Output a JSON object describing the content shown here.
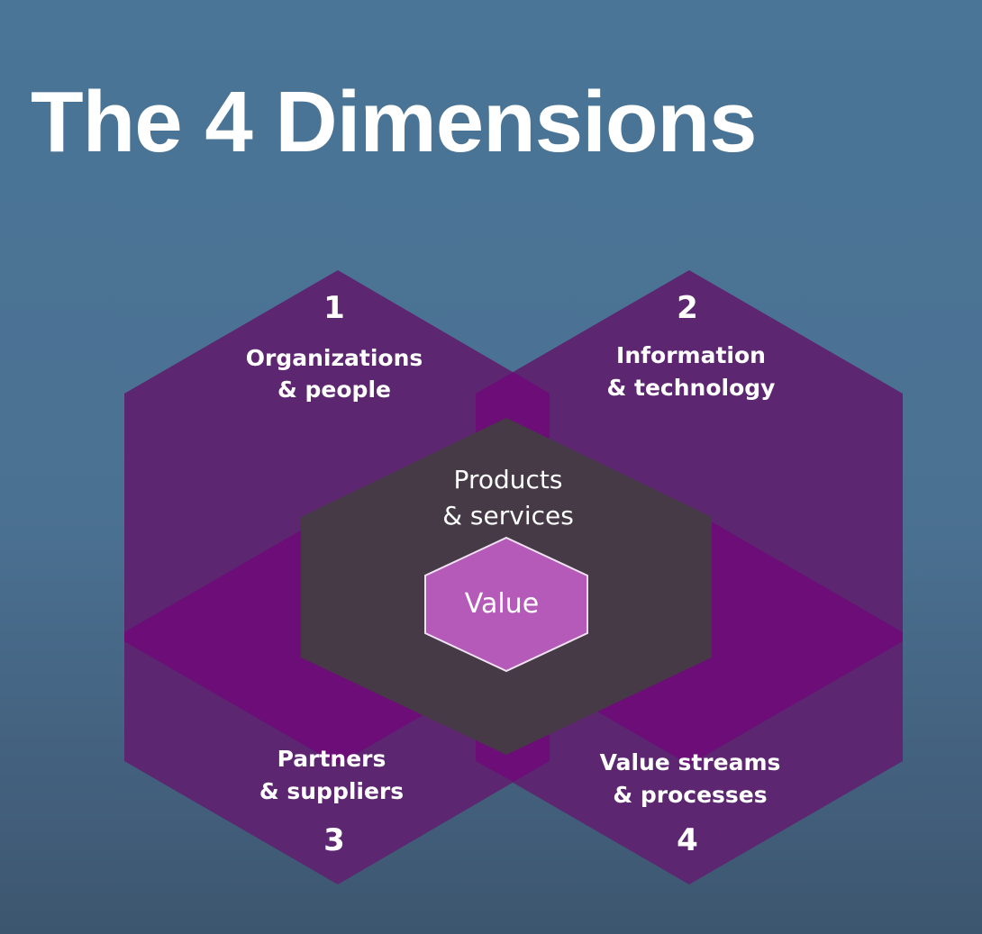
{
  "slide": {
    "title": "The 4 Dimensions"
  },
  "diagram": {
    "dimensions": [
      {
        "number": "1",
        "line1": "Organizations",
        "line2": "& people"
      },
      {
        "number": "2",
        "line1": "Information",
        "line2": "& technology"
      },
      {
        "number": "3",
        "line1": "Partners",
        "line2": "& suppliers"
      },
      {
        "number": "4",
        "line1": "Value streams",
        "line2": "& processes"
      }
    ],
    "core": {
      "line1": "Products",
      "line2": "& services"
    },
    "center": {
      "label": "Value"
    }
  },
  "colors": {
    "background": "#4a7597",
    "dimension_hex": "#5c2670",
    "overlap": "#6c0d78",
    "core_hex": "#463a46",
    "value_hex": "#b55ab8",
    "text": "#ffffff"
  }
}
